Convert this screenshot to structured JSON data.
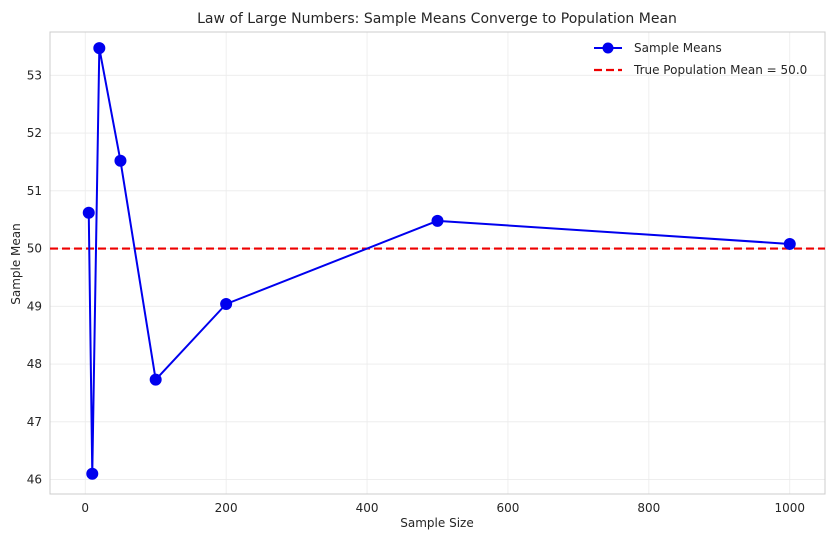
{
  "chart_data": {
    "type": "line",
    "title": "Law of Large Numbers: Sample Means Converge to Population Mean",
    "xlabel": "Sample Size",
    "ylabel": "Sample Mean",
    "xlim": [
      -50,
      1050
    ],
    "ylim": [
      45.75,
      53.75
    ],
    "xticks": [
      0,
      200,
      400,
      600,
      800,
      1000
    ],
    "yticks": [
      46,
      47,
      48,
      49,
      50,
      51,
      52,
      53
    ],
    "grid": true,
    "legend_position": "top-right",
    "series": [
      {
        "name": "Sample Means",
        "color": "#0000ee",
        "marker": "circle",
        "x": [
          5,
          10,
          20,
          50,
          100,
          200,
          500,
          1000
        ],
        "y": [
          50.62,
          46.1,
          53.47,
          51.52,
          47.73,
          49.04,
          50.48,
          50.08
        ]
      }
    ],
    "reference_lines": [
      {
        "name": "True Population Mean = 50.0",
        "y": 50.0,
        "color": "#ee0000",
        "style": "dashed"
      }
    ]
  }
}
